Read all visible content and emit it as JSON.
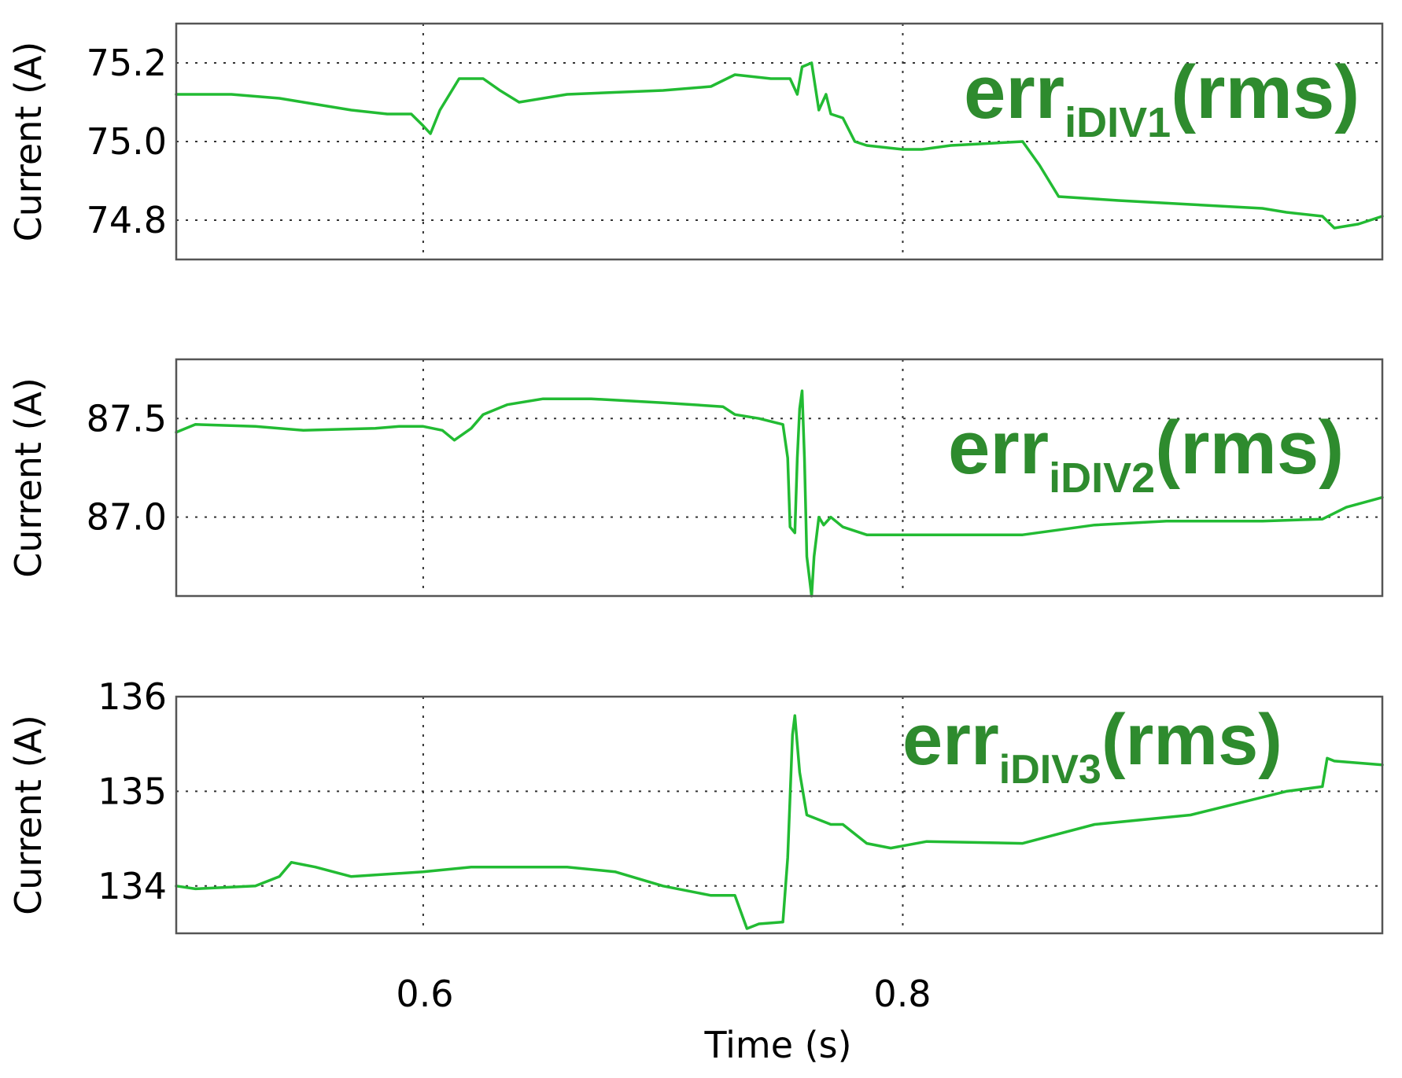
{
  "chart_data": {
    "type": "line",
    "xlabel": "Time (s)",
    "xlim": [
      0.497,
      1.0
    ],
    "xticks": [
      0.6,
      0.8
    ],
    "xtick_labels": [
      "0.6",
      "0.8"
    ],
    "line_color": "#22bb33",
    "annotation_color": "#2e8b2e",
    "grid": true,
    "panels": [
      {
        "ylabel": "Current (A)",
        "ylim": [
          74.7,
          75.3
        ],
        "yticks": [
          74.8,
          75.0,
          75.2
        ],
        "ytick_labels": [
          "74.8",
          "75.0",
          "75.2"
        ],
        "annotation": {
          "base": "err",
          "sub": "iDIV1",
          "suffix": "(rms)"
        },
        "series": {
          "x": [
            0.497,
            0.52,
            0.54,
            0.55,
            0.56,
            0.57,
            0.585,
            0.595,
            0.6,
            0.603,
            0.607,
            0.615,
            0.625,
            0.632,
            0.64,
            0.66,
            0.7,
            0.72,
            0.73,
            0.745,
            0.753,
            0.756,
            0.758,
            0.762,
            0.765,
            0.768,
            0.77,
            0.775,
            0.78,
            0.785,
            0.8,
            0.808,
            0.82,
            0.85,
            0.857,
            0.865,
            0.89,
            0.92,
            0.95,
            0.96,
            0.975,
            0.98,
            0.99,
            1.0
          ],
          "y": [
            75.12,
            75.12,
            75.11,
            75.1,
            75.09,
            75.08,
            75.07,
            75.07,
            75.04,
            75.02,
            75.08,
            75.16,
            75.16,
            75.13,
            75.1,
            75.12,
            75.13,
            75.14,
            75.17,
            75.16,
            75.16,
            75.12,
            75.19,
            75.2,
            75.08,
            75.12,
            75.07,
            75.06,
            75.0,
            74.99,
            74.98,
            74.98,
            74.99,
            75.0,
            74.94,
            74.86,
            74.85,
            74.84,
            74.83,
            74.82,
            74.81,
            74.78,
            74.79,
            74.81
          ]
        }
      },
      {
        "ylabel": "Current (A)",
        "ylim": [
          86.6,
          87.8
        ],
        "yticks": [
          87.0,
          87.5
        ],
        "ytick_labels": [
          "87.0",
          "87.5"
        ],
        "annotation": {
          "base": "err",
          "sub": "iDIV2",
          "suffix": "(rms)"
        },
        "series": {
          "x": [
            0.497,
            0.505,
            0.53,
            0.55,
            0.58,
            0.59,
            0.6,
            0.608,
            0.613,
            0.62,
            0.625,
            0.635,
            0.65,
            0.67,
            0.7,
            0.725,
            0.73,
            0.74,
            0.75,
            0.752,
            0.753,
            0.755,
            0.756,
            0.757,
            0.758,
            0.759,
            0.76,
            0.762,
            0.763,
            0.765,
            0.767,
            0.77,
            0.775,
            0.785,
            0.8,
            0.85,
            0.88,
            0.91,
            0.95,
            0.975,
            0.985,
            1.0
          ],
          "y": [
            87.43,
            87.47,
            87.46,
            87.44,
            87.45,
            87.46,
            87.46,
            87.44,
            87.39,
            87.45,
            87.52,
            87.57,
            87.6,
            87.6,
            87.58,
            87.56,
            87.52,
            87.5,
            87.47,
            87.3,
            86.95,
            86.92,
            87.3,
            87.55,
            87.64,
            87.3,
            86.8,
            86.6,
            86.8,
            87.0,
            86.96,
            87.0,
            86.95,
            86.91,
            86.91,
            86.91,
            86.96,
            86.98,
            86.98,
            86.99,
            87.05,
            87.1
          ]
        }
      },
      {
        "ylabel": "Current (A)",
        "ylim": [
          133.5,
          136.0
        ],
        "yticks": [
          134,
          135,
          136
        ],
        "ytick_labels": [
          "134",
          "135",
          "136"
        ],
        "annotation": {
          "base": "err",
          "sub": "iDIV3",
          "suffix": "(rms)"
        },
        "series": {
          "x": [
            0.497,
            0.505,
            0.53,
            0.54,
            0.545,
            0.555,
            0.57,
            0.6,
            0.62,
            0.64,
            0.66,
            0.68,
            0.7,
            0.72,
            0.73,
            0.735,
            0.74,
            0.75,
            0.752,
            0.754,
            0.755,
            0.757,
            0.76,
            0.77,
            0.775,
            0.785,
            0.795,
            0.81,
            0.85,
            0.88,
            0.92,
            0.96,
            0.975,
            0.977,
            0.98,
            1.0
          ],
          "y": [
            134.0,
            133.97,
            134.0,
            134.1,
            134.25,
            134.2,
            134.1,
            134.15,
            134.2,
            134.2,
            134.2,
            134.15,
            134.0,
            133.9,
            133.9,
            133.55,
            133.6,
            133.62,
            134.3,
            135.6,
            135.8,
            135.2,
            134.75,
            134.65,
            134.65,
            134.45,
            134.4,
            134.47,
            134.45,
            134.65,
            134.75,
            135.0,
            135.05,
            135.35,
            135.32,
            135.28
          ]
        }
      }
    ]
  }
}
